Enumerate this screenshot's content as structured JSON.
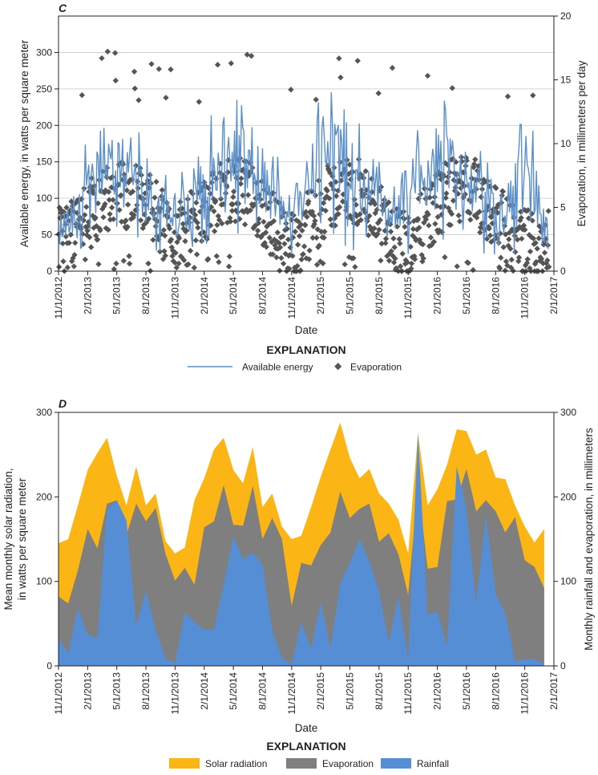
{
  "chart_data": [
    {
      "type": "line",
      "panel": "C",
      "xlabel": "Date",
      "ylabel": "Available energy, in watts per square meter",
      "y2label": "Evaporation, in millimeters per day",
      "x_range": [
        0,
        51
      ],
      "ylim": [
        0,
        350
      ],
      "y2lim": [
        0,
        20
      ],
      "yticks": [
        "0",
        "50",
        "100",
        "150",
        "200",
        "250",
        "300"
      ],
      "y2ticks": [
        "0",
        "5",
        "10",
        "15",
        "20"
      ],
      "x_ticks": [
        "11/1/2012",
        "2/1/2013",
        "5/1/2013",
        "8/1/2013",
        "11/1/2013",
        "2/1/2014",
        "5/1/2014",
        "8/1/2014",
        "11/1/2014",
        "2/1/2015",
        "5/1/2015",
        "8/1/2015",
        "11/1/2015",
        "2/1/2016",
        "5/1/2016",
        "8/1/2016",
        "11/1/2016",
        "2/1/2017"
      ],
      "explanation_title": "EXPLANATION",
      "legend": [
        "Available energy",
        "Evaporation"
      ],
      "colors": {
        "energy": "#5b8fc9",
        "evap": "#555555"
      },
      "series": [
        {
          "name": "Available energy (monthly envelope of daily series, W/m2)",
          "x": [
            0,
            1,
            2,
            3,
            4,
            5,
            6,
            7,
            8,
            9,
            10,
            11,
            12,
            13,
            14,
            15,
            16,
            17,
            18,
            19,
            20,
            21,
            22,
            23,
            24,
            25,
            26,
            27,
            28,
            29,
            30,
            31,
            32,
            33,
            34,
            35,
            36,
            37,
            38,
            39,
            40,
            41,
            42,
            43,
            44,
            45,
            46,
            47,
            48,
            49,
            50
          ],
          "values": [
            80,
            100,
            130,
            160,
            190,
            200,
            185,
            195,
            175,
            160,
            130,
            110,
            100,
            125,
            150,
            170,
            195,
            220,
            195,
            200,
            200,
            170,
            145,
            120,
            110,
            140,
            170,
            215,
            215,
            200,
            190,
            175,
            165,
            140,
            110,
            130,
            150,
            170,
            190,
            200,
            195,
            180,
            170,
            150,
            140,
            120,
            105,
            160,
            190,
            160,
            110
          ]
        },
        {
          "name": "Evaporation (monthly mean of daily values, mm/day)",
          "x": [
            0,
            1,
            2,
            3,
            4,
            5,
            6,
            7,
            8,
            9,
            10,
            11,
            12,
            13,
            14,
            15,
            16,
            17,
            18,
            19,
            20,
            21,
            22,
            23,
            24,
            25,
            26,
            27,
            28,
            29,
            30,
            31,
            32,
            33,
            34,
            35,
            36,
            37,
            38,
            39,
            40,
            41,
            42,
            43,
            44,
            45,
            46,
            47,
            48,
            49,
            50
          ],
          "values": [
            2.2,
            3.0,
            3.8,
            4.4,
            5.0,
            5.6,
            5.9,
            6.0,
            5.9,
            5.3,
            4.4,
            3.3,
            2.8,
            3.0,
            3.8,
            4.7,
            5.6,
            6.1,
            6.2,
            6.1,
            5.7,
            4.7,
            3.7,
            2.4,
            1.9,
            2.8,
            3.8,
            4.9,
            5.8,
            6.3,
            6.4,
            6.0,
            5.3,
            4.3,
            3.2,
            2.4,
            1.9,
            3.0,
            4.1,
            5.1,
            5.9,
            6.4,
            6.4,
            6.1,
            5.3,
            4.3,
            3.3,
            2.5,
            2.2,
            2.2,
            2.3
          ]
        }
      ]
    },
    {
      "type": "area",
      "panel": "D",
      "xlabel": "Date",
      "ylabel": "Mean monthly solar radiation, in watts per square meter",
      "y2label": "Monthly rainfall and evaporation, in millimeters",
      "x_range": [
        0,
        51
      ],
      "ylim": [
        0,
        300
      ],
      "y2lim": [
        0,
        300
      ],
      "yticks": [
        "0",
        "100",
        "200",
        "300"
      ],
      "y2ticks": [
        "0",
        "100",
        "200",
        "300"
      ],
      "x_ticks": [
        "11/1/2012",
        "2/1/2013",
        "5/1/2013",
        "8/1/2013",
        "11/1/2013",
        "2/1/2014",
        "5/1/2014",
        "8/1/2014",
        "11/1/2014",
        "2/1/2015",
        "5/1/2015",
        "8/1/2015",
        "11/1/2015",
        "2/1/2016",
        "5/1/2016",
        "8/1/2016",
        "11/1/2016",
        "2/1/2017"
      ],
      "explanation_title": "EXPLANATION",
      "legend": [
        "Solar radiation",
        "Evaporation",
        "Rainfall"
      ],
      "colors": {
        "solar": "#fbb514",
        "evap": "#7f7f7f",
        "rain": "#558ed5"
      },
      "series": [
        {
          "name": "Solar radiation",
          "x": [
            0,
            1,
            2,
            3,
            4,
            5,
            6,
            7,
            8,
            9,
            10,
            11,
            12,
            13,
            14,
            15,
            16,
            17,
            18,
            19,
            20,
            21,
            22,
            23,
            24,
            25,
            26,
            27,
            28,
            29,
            30,
            31,
            32,
            33,
            34,
            35,
            36,
            37,
            38,
            39,
            40,
            41,
            42,
            43,
            44,
            45,
            46,
            47,
            48,
            49,
            50
          ],
          "values": [
            145,
            150,
            190,
            232,
            252,
            270,
            225,
            190,
            236,
            190,
            204,
            148,
            133,
            140,
            196,
            222,
            256,
            270,
            232,
            216,
            259,
            188,
            204,
            165,
            150,
            154,
            188,
            224,
            256,
            288,
            246,
            222,
            233,
            204,
            192,
            173,
            133,
            275,
            190,
            209,
            238,
            280,
            278,
            250,
            256,
            223,
            221,
            190,
            165,
            146,
            162
          ]
        },
        {
          "name": "Evaporation",
          "x": [
            0,
            1,
            2,
            3,
            4,
            5,
            6,
            7,
            8,
            9,
            10,
            11,
            12,
            13,
            14,
            15,
            16,
            17,
            18,
            19,
            20,
            21,
            22,
            23,
            24,
            25,
            26,
            27,
            28,
            29,
            30,
            31,
            32,
            33,
            34,
            35,
            36,
            37,
            38,
            39,
            40,
            41,
            42,
            43,
            44,
            45,
            46,
            47,
            48,
            49,
            50
          ],
          "values": [
            82,
            74,
            113,
            162,
            139,
            192,
            196,
            155,
            192,
            171,
            187,
            133,
            101,
            116,
            96,
            164,
            171,
            214,
            167,
            166,
            213,
            150,
            175,
            150,
            71,
            122,
            119,
            143,
            158,
            206,
            175,
            186,
            192,
            147,
            157,
            132,
            84,
            214,
            115,
            117,
            195,
            197,
            233,
            183,
            196,
            183,
            158,
            176,
            125,
            117,
            92
          ]
        },
        {
          "name": "Rainfall",
          "x": [
            0,
            1,
            2,
            3,
            4,
            5,
            6,
            7,
            8,
            9,
            10,
            11,
            12,
            13,
            14,
            15,
            16,
            17,
            18,
            19,
            20,
            21,
            22,
            23,
            24,
            25,
            26,
            27,
            28,
            29,
            30,
            31,
            32,
            33,
            34,
            35,
            36,
            37,
            38,
            39,
            40,
            41,
            42,
            43,
            44,
            45,
            46,
            47,
            48,
            49,
            50
          ],
          "values": [
            33,
            14,
            68,
            37,
            33,
            186,
            196,
            172,
            47,
            89,
            43,
            9,
            3,
            63,
            52,
            43,
            43,
            96,
            153,
            126,
            134,
            120,
            42,
            10,
            2,
            52,
            20,
            75,
            21,
            97,
            122,
            150,
            124,
            88,
            28,
            82,
            8,
            276,
            60,
            64,
            23,
            236,
            186,
            75,
            178,
            86,
            62,
            5,
            8,
            8,
            3
          ]
        }
      ]
    }
  ]
}
